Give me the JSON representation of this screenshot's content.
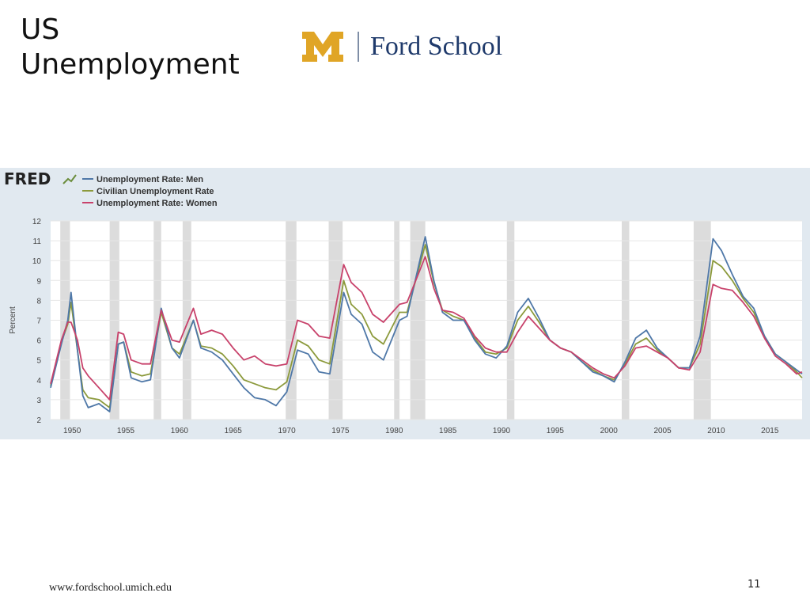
{
  "slide": {
    "title": "US Unemployment",
    "logo_text": "Ford School",
    "footer_url": "www.fordschool.umich.edu",
    "page_number": "11"
  },
  "chart_data": {
    "type": "line",
    "source_logo": "FRED",
    "ylabel": "Percent",
    "xlim": [
      1948,
      2018
    ],
    "ylim": [
      2,
      12
    ],
    "y_ticks": [
      2,
      3,
      4,
      5,
      6,
      7,
      8,
      9,
      10,
      11,
      12
    ],
    "x_ticks": [
      1950,
      1955,
      1960,
      1965,
      1970,
      1975,
      1980,
      1985,
      1990,
      1995,
      2000,
      2005,
      2010,
      2015
    ],
    "grid": true,
    "legend_position": "top-left",
    "recessions": [
      [
        1948.9,
        1949.8
      ],
      [
        1953.5,
        1954.4
      ],
      [
        1957.6,
        1958.3
      ],
      [
        1960.3,
        1961.1
      ],
      [
        1969.9,
        1970.9
      ],
      [
        1973.9,
        1975.2
      ],
      [
        1980.0,
        1980.5
      ],
      [
        1981.5,
        1982.9
      ],
      [
        1990.5,
        1991.2
      ],
      [
        2001.2,
        2001.9
      ],
      [
        2007.9,
        2009.5
      ]
    ],
    "recession_color": "#dcdcdc",
    "series": [
      {
        "name": "Unemployment Rate: Men",
        "color": "#4f78a8",
        "points": [
          [
            1948,
            3.6
          ],
          [
            1949,
            5.8
          ],
          [
            1949.6,
            7.0
          ],
          [
            1949.9,
            8.4
          ],
          [
            1950.5,
            5.5
          ],
          [
            1951,
            3.2
          ],
          [
            1951.5,
            2.6
          ],
          [
            1952.5,
            2.8
          ],
          [
            1953.5,
            2.4
          ],
          [
            1954.3,
            5.8
          ],
          [
            1954.8,
            5.9
          ],
          [
            1955.5,
            4.1
          ],
          [
            1956.5,
            3.9
          ],
          [
            1957.3,
            4.0
          ],
          [
            1958.3,
            7.6
          ],
          [
            1959.3,
            5.6
          ],
          [
            1960.0,
            5.1
          ],
          [
            1961.3,
            7.0
          ],
          [
            1962,
            5.6
          ],
          [
            1963,
            5.4
          ],
          [
            1964,
            5.0
          ],
          [
            1965,
            4.3
          ],
          [
            1966,
            3.6
          ],
          [
            1967,
            3.1
          ],
          [
            1968,
            3.0
          ],
          [
            1969,
            2.7
          ],
          [
            1970,
            3.4
          ],
          [
            1971,
            5.5
          ],
          [
            1972,
            5.3
          ],
          [
            1973,
            4.4
          ],
          [
            1974,
            4.3
          ],
          [
            1975.3,
            8.4
          ],
          [
            1976,
            7.3
          ],
          [
            1977,
            6.8
          ],
          [
            1978,
            5.4
          ],
          [
            1979,
            5.0
          ],
          [
            1980.5,
            7.0
          ],
          [
            1981.2,
            7.2
          ],
          [
            1982.9,
            11.2
          ],
          [
            1983.7,
            9.0
          ],
          [
            1984.5,
            7.4
          ],
          [
            1985.5,
            7.0
          ],
          [
            1986.5,
            7.0
          ],
          [
            1987.5,
            6.0
          ],
          [
            1988.5,
            5.3
          ],
          [
            1989.5,
            5.1
          ],
          [
            1990.5,
            5.7
          ],
          [
            1991.5,
            7.4
          ],
          [
            1992.5,
            8.1
          ],
          [
            1993.5,
            7.1
          ],
          [
            1994.5,
            6.0
          ],
          [
            1995.5,
            5.6
          ],
          [
            1996.5,
            5.4
          ],
          [
            1997.5,
            4.9
          ],
          [
            1998.5,
            4.4
          ],
          [
            1999.5,
            4.2
          ],
          [
            2000.5,
            3.9
          ],
          [
            2001.5,
            4.9
          ],
          [
            2002.5,
            6.1
          ],
          [
            2003.5,
            6.5
          ],
          [
            2004.5,
            5.6
          ],
          [
            2005.5,
            5.1
          ],
          [
            2006.5,
            4.6
          ],
          [
            2007.5,
            4.6
          ],
          [
            2008.5,
            6.2
          ],
          [
            2009.7,
            11.1
          ],
          [
            2010.5,
            10.5
          ],
          [
            2011.5,
            9.3
          ],
          [
            2012.5,
            8.2
          ],
          [
            2013.5,
            7.6
          ],
          [
            2014.5,
            6.2
          ],
          [
            2015.5,
            5.3
          ],
          [
            2016.5,
            4.9
          ],
          [
            2017.5,
            4.5
          ],
          [
            2018,
            4.3
          ]
        ]
      },
      {
        "name": "Civilian Unemployment Rate",
        "color": "#8c9a3c",
        "points": [
          [
            1948,
            3.7
          ],
          [
            1949,
            5.9
          ],
          [
            1949.6,
            6.8
          ],
          [
            1949.9,
            7.9
          ],
          [
            1950.5,
            5.5
          ],
          [
            1951,
            3.5
          ],
          [
            1951.5,
            3.1
          ],
          [
            1952.5,
            3.0
          ],
          [
            1953.5,
            2.6
          ],
          [
            1954.3,
            5.8
          ],
          [
            1954.8,
            5.9
          ],
          [
            1955.5,
            4.4
          ],
          [
            1956.5,
            4.2
          ],
          [
            1957.3,
            4.3
          ],
          [
            1958.3,
            7.4
          ],
          [
            1959.3,
            5.6
          ],
          [
            1960.0,
            5.3
          ],
          [
            1961.3,
            7.0
          ],
          [
            1962,
            5.7
          ],
          [
            1963,
            5.6
          ],
          [
            1964,
            5.3
          ],
          [
            1965,
            4.7
          ],
          [
            1966,
            4.0
          ],
          [
            1967,
            3.8
          ],
          [
            1968,
            3.6
          ],
          [
            1969,
            3.5
          ],
          [
            1970,
            3.9
          ],
          [
            1971,
            6.0
          ],
          [
            1972,
            5.7
          ],
          [
            1973,
            5.0
          ],
          [
            1974,
            4.8
          ],
          [
            1975.3,
            9.0
          ],
          [
            1976,
            7.8
          ],
          [
            1977,
            7.3
          ],
          [
            1978,
            6.2
          ],
          [
            1979,
            5.8
          ],
          [
            1980.5,
            7.4
          ],
          [
            1981.2,
            7.4
          ],
          [
            1982.9,
            10.8
          ],
          [
            1983.7,
            8.9
          ],
          [
            1984.5,
            7.5
          ],
          [
            1985.5,
            7.2
          ],
          [
            1986.5,
            7.0
          ],
          [
            1987.5,
            6.1
          ],
          [
            1988.5,
            5.4
          ],
          [
            1989.5,
            5.3
          ],
          [
            1990.5,
            5.6
          ],
          [
            1991.5,
            7.0
          ],
          [
            1992.5,
            7.7
          ],
          [
            1993.5,
            6.9
          ],
          [
            1994.5,
            6.0
          ],
          [
            1995.5,
            5.6
          ],
          [
            1996.5,
            5.4
          ],
          [
            1997.5,
            4.9
          ],
          [
            1998.5,
            4.5
          ],
          [
            1999.5,
            4.2
          ],
          [
            2000.5,
            4.0
          ],
          [
            2001.5,
            4.8
          ],
          [
            2002.5,
            5.8
          ],
          [
            2003.5,
            6.1
          ],
          [
            2004.5,
            5.5
          ],
          [
            2005.5,
            5.1
          ],
          [
            2006.5,
            4.6
          ],
          [
            2007.5,
            4.6
          ],
          [
            2008.5,
            5.8
          ],
          [
            2009.7,
            10.0
          ],
          [
            2010.5,
            9.7
          ],
          [
            2011.5,
            9.0
          ],
          [
            2012.5,
            8.1
          ],
          [
            2013.5,
            7.4
          ],
          [
            2014.5,
            6.2
          ],
          [
            2015.5,
            5.3
          ],
          [
            2016.5,
            4.9
          ],
          [
            2017.5,
            4.4
          ],
          [
            2018,
            4.1
          ]
        ]
      },
      {
        "name": "Unemployment Rate: Women",
        "color": "#c8426b",
        "points": [
          [
            1948,
            3.8
          ],
          [
            1949,
            6.0
          ],
          [
            1949.6,
            6.9
          ],
          [
            1949.9,
            6.9
          ],
          [
            1950.5,
            6.0
          ],
          [
            1951,
            4.6
          ],
          [
            1951.5,
            4.2
          ],
          [
            1952.5,
            3.6
          ],
          [
            1953.5,
            3.0
          ],
          [
            1954.3,
            6.4
          ],
          [
            1954.8,
            6.3
          ],
          [
            1955.5,
            5.0
          ],
          [
            1956.5,
            4.8
          ],
          [
            1957.3,
            4.8
          ],
          [
            1958.3,
            7.5
          ],
          [
            1959.3,
            6.0
          ],
          [
            1960.0,
            5.9
          ],
          [
            1961.3,
            7.6
          ],
          [
            1962,
            6.3
          ],
          [
            1963,
            6.5
          ],
          [
            1964,
            6.3
          ],
          [
            1965,
            5.6
          ],
          [
            1966,
            5.0
          ],
          [
            1967,
            5.2
          ],
          [
            1968,
            4.8
          ],
          [
            1969,
            4.7
          ],
          [
            1970,
            4.8
          ],
          [
            1971,
            7.0
          ],
          [
            1972,
            6.8
          ],
          [
            1973,
            6.2
          ],
          [
            1974,
            6.1
          ],
          [
            1975.3,
            9.8
          ],
          [
            1976,
            8.9
          ],
          [
            1977,
            8.4
          ],
          [
            1978,
            7.3
          ],
          [
            1979,
            6.9
          ],
          [
            1980.5,
            7.8
          ],
          [
            1981.2,
            7.9
          ],
          [
            1982.9,
            10.2
          ],
          [
            1983.7,
            8.6
          ],
          [
            1984.5,
            7.5
          ],
          [
            1985.5,
            7.4
          ],
          [
            1986.5,
            7.1
          ],
          [
            1987.5,
            6.2
          ],
          [
            1988.5,
            5.6
          ],
          [
            1989.5,
            5.4
          ],
          [
            1990.5,
            5.4
          ],
          [
            1991.5,
            6.4
          ],
          [
            1992.5,
            7.2
          ],
          [
            1993.5,
            6.6
          ],
          [
            1994.5,
            6.0
          ],
          [
            1995.5,
            5.6
          ],
          [
            1996.5,
            5.4
          ],
          [
            1997.5,
            5.0
          ],
          [
            1998.5,
            4.6
          ],
          [
            1999.5,
            4.3
          ],
          [
            2000.5,
            4.1
          ],
          [
            2001.5,
            4.7
          ],
          [
            2002.5,
            5.6
          ],
          [
            2003.5,
            5.7
          ],
          [
            2004.5,
            5.4
          ],
          [
            2005.5,
            5.1
          ],
          [
            2006.5,
            4.6
          ],
          [
            2007.5,
            4.5
          ],
          [
            2008.5,
            5.4
          ],
          [
            2009.7,
            8.8
          ],
          [
            2010.5,
            8.6
          ],
          [
            2011.5,
            8.5
          ],
          [
            2012.5,
            7.9
          ],
          [
            2013.5,
            7.2
          ],
          [
            2014.5,
            6.1
          ],
          [
            2015.5,
            5.2
          ],
          [
            2016.5,
            4.8
          ],
          [
            2017.5,
            4.3
          ],
          [
            2018,
            4.4
          ]
        ]
      }
    ]
  }
}
